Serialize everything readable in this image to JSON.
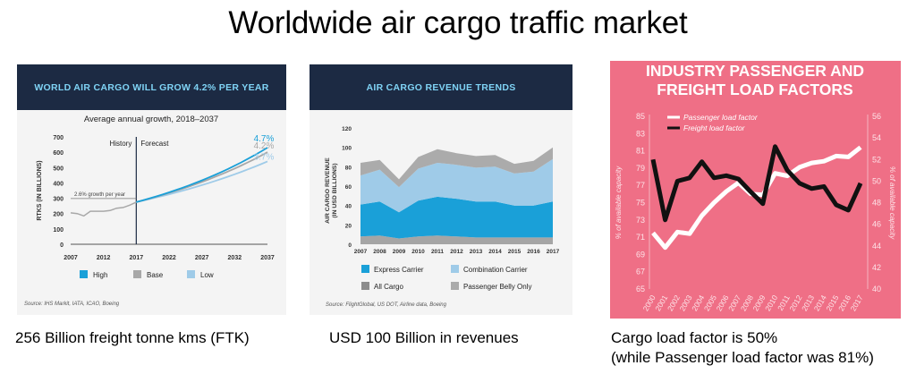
{
  "page": {
    "title": "Worldwide air cargo traffic market"
  },
  "captions": {
    "c1": "256 Billion freight tonne kms (FTK)",
    "c2": "USD 100 Billion in revenues",
    "c3a": "Cargo load factor is 50%",
    "c3b": "(while Passenger load factor was 81%)"
  },
  "colors": {
    "navy": "#1c2a43",
    "high": "#1aa0d8",
    "base": "#a8a8a8",
    "low": "#9fcbe8",
    "pink": "#ef6f86"
  },
  "chart_data": [
    {
      "type": "line",
      "banner": "WORLD AIR CARGO WILL GROW 4.2% PER YEAR",
      "title": "Average annual growth, 2018–2037",
      "ylabel": "RTKS (IN BILLIONS)",
      "xlabel": "",
      "ylim": [
        0,
        700
      ],
      "yticks": [
        0,
        100,
        200,
        300,
        400,
        500,
        600,
        700
      ],
      "xticks": [
        2007,
        2012,
        2017,
        2022,
        2027,
        2032,
        2037
      ],
      "history_label": "History",
      "forecast_label": "Forecast",
      "forecast_start": 2017,
      "growth_note": "2.6% growth per year",
      "history": {
        "x": [
          2007,
          2008,
          2009,
          2010,
          2011,
          2012,
          2013,
          2014,
          2015,
          2016,
          2017
        ],
        "y": [
          205,
          200,
          185,
          215,
          215,
          215,
          220,
          235,
          240,
          255,
          275
        ]
      },
      "series": [
        {
          "name": "High",
          "end_label": "4.7%",
          "color": "#1aa0d8",
          "rate": 0.047,
          "end": 630
        },
        {
          "name": "Base",
          "end_label": "4.2%",
          "color": "#a8a8a8",
          "rate": 0.042,
          "end": 600
        },
        {
          "name": "Low",
          "end_label": "3.7%",
          "color": "#9fcbe8",
          "rate": 0.037,
          "end": 540
        }
      ],
      "legend": [
        "High",
        "Base",
        "Low"
      ],
      "source": "Source: IHS Markit, IATA, ICAO, Boeing"
    },
    {
      "type": "area",
      "banner": "AIR CARGO REVENUE TRENDS",
      "ylabel": "AIR CARGO REVENUE (IN USD BILLIONS)",
      "ylabel_lines": [
        "AIR CARGO REVENUE",
        "(IN USD BILLIONS)"
      ],
      "xlabel": "",
      "ylim": [
        0,
        120
      ],
      "yticks": [
        0,
        20,
        40,
        60,
        80,
        100,
        120
      ],
      "categories": [
        "2007",
        "2008",
        "2009",
        "2010",
        "2011",
        "2012",
        "2013",
        "2014",
        "2015",
        "2016",
        "2017"
      ],
      "series": [
        {
          "name": "All Cargo",
          "color": "#a5a5a5",
          "values": [
            8,
            9,
            6,
            8,
            9,
            8,
            7,
            7,
            7,
            7,
            7
          ]
        },
        {
          "name": "Express Carrier",
          "color": "#1aa0d8",
          "values": [
            33,
            35,
            27,
            37,
            40,
            39,
            37,
            37,
            33,
            33,
            37
          ]
        },
        {
          "name": "Combination Carrier",
          "color": "#9fcbe8",
          "values": [
            30,
            33,
            26,
            33,
            35,
            35,
            35,
            36,
            33,
            35,
            44
          ]
        },
        {
          "name": "Passenger Belly Only",
          "color": "#ababab",
          "values": [
            13,
            10,
            8,
            12,
            14,
            12,
            12,
            12,
            10,
            11,
            12
          ]
        }
      ],
      "legend": [
        "Express Carrier",
        "Combination Carrier",
        "All Cargo",
        "Passenger Belly Only"
      ],
      "source": "Source: FlightGlobal, US DOT, Airline data, Boeing"
    },
    {
      "type": "line",
      "title_lines": [
        "INDUSTRY PASSENGER AND",
        "FREIGHT LOAD FACTORS"
      ],
      "ylabel_left": "% of available capacity",
      "ylabel_right": "% of available capacity",
      "ylim_left": [
        65,
        85
      ],
      "yticks_left": [
        65,
        67,
        69,
        71,
        73,
        75,
        77,
        79,
        81,
        83,
        85
      ],
      "ylim_right": [
        40,
        56
      ],
      "yticks_right": [
        40,
        42,
        44,
        46,
        48,
        50,
        52,
        54,
        56
      ],
      "x": [
        "2000",
        "2001",
        "2002",
        "2003",
        "2004",
        "2005",
        "2006",
        "2007",
        "2008",
        "2009",
        "2010",
        "2011",
        "2012",
        "2013",
        "2014",
        "2015",
        "2016",
        "2017"
      ],
      "series": [
        {
          "name": "Passenger load factor",
          "axis": "left",
          "color": "#ffffff",
          "values": [
            71.5,
            69.8,
            71.6,
            71.4,
            73.5,
            75.0,
            76.3,
            77.3,
            76.0,
            75.9,
            78.4,
            78.1,
            79.1,
            79.6,
            79.8,
            80.4,
            80.3,
            81.4
          ]
        },
        {
          "name": "Freight load factor",
          "axis": "right",
          "color": "#111111",
          "values": [
            52.0,
            46.4,
            50.0,
            50.3,
            51.8,
            50.3,
            50.5,
            50.2,
            49.0,
            47.9,
            53.2,
            51.0,
            49.8,
            49.3,
            49.5,
            47.8,
            47.3,
            49.8
          ]
        }
      ]
    }
  ]
}
